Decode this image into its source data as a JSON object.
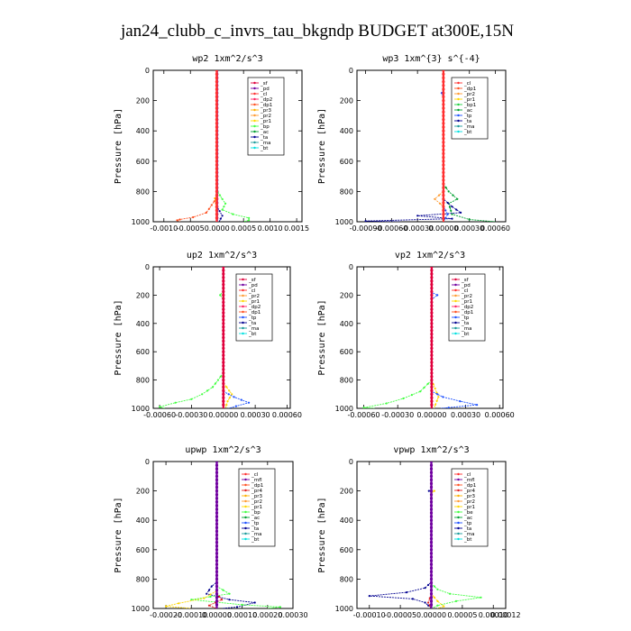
{
  "figure_title": "jan24_clubb_c_invrs_tau_bkgndp  BUDGET at300E,15N",
  "colors": {
    "sf": "#e0003c",
    "pd": "#7000a0",
    "cl": "#ff3030",
    "dp2": "#ff2060",
    "dp1": "#ff5020",
    "pr3": "#ffb000",
    "pr2": "#ff9a30",
    "pr1": "#ffd700",
    "bp": "#40ff40",
    "bp1": "#20d040",
    "ac": "#00a030",
    "tp": "#1c50ff",
    "ta": "#000090",
    "ma": "#1a9a9a",
    "bt": "#00e0e0",
    "mfl": "#7000a0",
    "pr4": "#e02020",
    "be": "#40ff40"
  },
  "chart_data": [
    {
      "type": "line",
      "title": "wp2   1xm^2/s^3",
      "ylabel": "Pressure [hPa]",
      "ylim": [
        1000,
        0
      ],
      "xlim": [
        -0.0012,
        0.0016
      ],
      "xticks": [
        "-0.0010",
        "-0.0005",
        "0.0000",
        "0.0005",
        "0.0010",
        "0.0015"
      ],
      "xtick_values": [
        -0.001,
        -0.0005,
        0,
        0.0005,
        0.001,
        0.0015
      ],
      "yticks": [
        "0",
        "200",
        "400",
        "600",
        "800",
        "1000"
      ],
      "legend": [
        "_sf",
        "_pd",
        "_cl",
        "_dp2",
        "_dp1",
        "_pr3",
        "_pr2",
        "_pr1",
        "_bp",
        "_ac",
        "_ta",
        "_ma",
        "_bt"
      ],
      "series": [
        {
          "name": "_bp",
          "key": "bp",
          "points": [
            [
              0,
              0
            ],
            [
              0,
              700
            ],
            [
              1e-05,
              800
            ],
            [
              0.0001,
              850
            ],
            [
              0.00016,
              880
            ],
            [
              0.0001,
              920
            ],
            [
              0.0003,
              950
            ],
            [
              0.0006,
              975
            ],
            [
              0.0006,
              990
            ],
            [
              0.0005,
              1000
            ]
          ]
        },
        {
          "name": "_dp1",
          "key": "dp1",
          "points": [
            [
              0,
              0
            ],
            [
              0,
              840
            ],
            [
              -0.0002,
              940
            ],
            [
              -0.00045,
              970
            ],
            [
              -0.0007,
              985
            ],
            [
              -0.00075,
              990
            ],
            [
              -0.0007,
              1000
            ]
          ]
        },
        {
          "name": "_pr3",
          "key": "pr3",
          "points": [
            [
              0,
              0
            ],
            [
              0,
              820
            ],
            [
              -4e-05,
              845
            ],
            [
              -2e-05,
              880
            ],
            [
              0,
              1000
            ]
          ]
        },
        {
          "name": "_ta",
          "key": "ta",
          "points": [
            [
              0,
              0
            ],
            [
              0,
              900
            ],
            [
              0.0001,
              960
            ],
            [
              4e-05,
              1000
            ]
          ]
        },
        {
          "name": "_pd",
          "key": "pd",
          "points": [
            [
              0,
              0
            ],
            [
              0,
              1000
            ]
          ]
        },
        {
          "name": "_cl",
          "key": "cl",
          "points": [
            [
              -5e-06,
              0
            ],
            [
              -5e-06,
              1000
            ]
          ]
        }
      ]
    },
    {
      "type": "line",
      "title": "wp3   1xm^{3} s^{-4}",
      "ylabel": "Pressure [hPa]",
      "ylim": [
        1000,
        0
      ],
      "xlim": [
        -0.001,
        0.00072
      ],
      "xticks": [
        "-0.00090",
        "-0.00060",
        "-0.00030",
        "0.00000",
        "0.00030",
        "0.00060"
      ],
      "xtick_values": [
        -0.0009,
        -0.0006,
        -0.0003,
        0,
        0.0003,
        0.0006
      ],
      "yticks": [
        "0",
        "200",
        "400",
        "600",
        "800",
        "1000"
      ],
      "legend": [
        "_cl",
        "_dp1",
        "_pr2",
        "_pr1",
        "_bp1",
        "_ac",
        "_tp",
        "_ta",
        "_ma",
        "_bt"
      ],
      "series": [
        {
          "name": "_ac",
          "key": "ac",
          "points": [
            [
              0,
              0
            ],
            [
              0,
              750
            ],
            [
              6e-05,
              800
            ],
            [
              0.00016,
              850
            ],
            [
              6e-05,
              880
            ],
            [
              0.0001,
              950
            ],
            [
              0.0003,
              985
            ],
            [
              0.0006,
              1000
            ]
          ]
        },
        {
          "name": "_pr2",
          "key": "pr2",
          "points": [
            [
              0,
              0
            ],
            [
              0,
              800
            ],
            [
              -0.0001,
              850
            ],
            [
              -4e-05,
              880
            ],
            [
              0,
              900
            ]
          ]
        },
        {
          "name": "_ta",
          "key": "ta",
          "points": [
            [
              0,
              0
            ],
            [
              0,
              850
            ],
            [
              0.0001,
              900
            ],
            [
              0.0002,
              940
            ],
            [
              -0.0003,
              960
            ],
            [
              0.0001,
              980
            ],
            [
              -0.0009,
              995
            ],
            [
              -0.0005,
              1000
            ]
          ]
        },
        {
          "name": "_tp",
          "key": "tp",
          "points": [
            [
              0,
              0
            ],
            [
              0,
              120
            ],
            [
              -2e-05,
              150
            ],
            [
              0,
              180
            ],
            [
              0,
              900
            ],
            [
              5e-05,
              950
            ],
            [
              0,
              1000
            ]
          ]
        },
        {
          "name": "_cl",
          "key": "cl",
          "points": [
            [
              0,
              0
            ],
            [
              0,
              1000
            ]
          ]
        }
      ]
    },
    {
      "type": "line",
      "title": "up2   1xm^2/s^3",
      "ylabel": "Pressure [hPa]",
      "ylim": [
        1000,
        0
      ],
      "xlim": [
        -0.00066,
        0.00063
      ],
      "xticks": [
        "-0.00060",
        "-0.00030",
        "0.00000",
        "0.00030",
        "0.00060"
      ],
      "xtick_values": [
        -0.0006,
        -0.0003,
        0,
        0.0003,
        0.0006
      ],
      "yticks": [
        "0",
        "200",
        "400",
        "600",
        "800",
        "1000"
      ],
      "legend": [
        "_sf",
        "_pd",
        "_cl",
        "_pr2",
        "_pr1",
        "_dp2",
        "_dp1",
        "_tp",
        "_ta",
        "_ma",
        "_bt"
      ],
      "series": [
        {
          "name": "_dp1",
          "key": "bp",
          "points": [
            [
              0,
              0
            ],
            [
              0,
              170
            ],
            [
              -3e-05,
              200
            ],
            [
              0,
              230
            ],
            [
              0,
              750
            ],
            [
              -0.0001,
              850
            ],
            [
              -0.0002,
              900
            ],
            [
              -0.0003,
              935
            ],
            [
              -0.00045,
              960
            ],
            [
              -0.0006,
              990
            ],
            [
              -0.00055,
              1000
            ]
          ]
        },
        {
          "name": "_pr1",
          "key": "pr1",
          "points": [
            [
              0,
              0
            ],
            [
              0,
              820
            ],
            [
              3e-05,
              850
            ],
            [
              8e-05,
              900
            ],
            [
              4e-05,
              950
            ],
            [
              2e-05,
              1000
            ]
          ]
        },
        {
          "name": "_tp",
          "key": "tp",
          "points": [
            [
              0,
              0
            ],
            [
              0,
              880
            ],
            [
              0.0001,
              920
            ],
            [
              0.00024,
              960
            ],
            [
              0.00012,
              985
            ],
            [
              5e-05,
              1000
            ]
          ]
        },
        {
          "name": "_sf",
          "key": "sf",
          "points": [
            [
              0,
              0
            ],
            [
              0,
              1000
            ]
          ]
        }
      ]
    },
    {
      "type": "line",
      "title": "vp2   1xm^2/s^3",
      "ylabel": "Pressure [hPa]",
      "ylim": [
        1000,
        0
      ],
      "xlim": [
        -0.00066,
        0.00063
      ],
      "xticks": [
        "-0.00060",
        "-0.00030",
        "0.00000",
        "0.00030",
        "0.00060"
      ],
      "xtick_values": [
        -0.0006,
        -0.0003,
        0,
        0.0003,
        0.0006
      ],
      "yticks": [
        "0",
        "200",
        "400",
        "600",
        "800",
        "1000"
      ],
      "legend": [
        "_sf",
        "_pd",
        "_cl",
        "_pr2",
        "_pr1",
        "_dp2",
        "_dp1",
        "_tp",
        "_ta",
        "_ma",
        "_bt"
      ],
      "series": [
        {
          "name": "_dp1",
          "key": "bp",
          "points": [
            [
              0,
              0
            ],
            [
              0,
              800
            ],
            [
              -0.0001,
              880
            ],
            [
              -0.00025,
              930
            ],
            [
              -0.0004,
              965
            ],
            [
              -0.0006,
              995
            ],
            [
              -0.0005,
              1000
            ]
          ]
        },
        {
          "name": "_pr1",
          "key": "pr1",
          "points": [
            [
              0,
              0
            ],
            [
              0,
              800
            ],
            [
              3e-05,
              860
            ],
            [
              6e-05,
              920
            ],
            [
              2e-05,
              1000
            ]
          ]
        },
        {
          "name": "_tp",
          "key": "tp",
          "points": [
            [
              0,
              0
            ],
            [
              0,
              180
            ],
            [
              5e-05,
              200
            ],
            [
              0,
              230
            ],
            [
              0,
              880
            ],
            [
              0.0001,
              920
            ],
            [
              0.00025,
              950
            ],
            [
              0.0004,
              975
            ],
            [
              0.00015,
              995
            ],
            [
              8e-05,
              1000
            ]
          ]
        },
        {
          "name": "_sf",
          "key": "sf",
          "points": [
            [
              0,
              0
            ],
            [
              0,
              1000
            ]
          ]
        }
      ]
    },
    {
      "type": "line",
      "title": "upwp   1xm^2/s^3",
      "ylabel": "Pressure [hPa]",
      "ylim": [
        1000,
        0
      ],
      "xlim": [
        -0.00025,
        0.0003
      ],
      "xticks": [
        "-0.00020",
        "-0.00010",
        "0.00000",
        "0.00010",
        "0.00020",
        "0.00030"
      ],
      "xtick_values": [
        -0.0002,
        -0.0001,
        0,
        0.0001,
        0.0002,
        0.0003
      ],
      "yticks": [
        "0",
        "200",
        "400",
        "600",
        "800",
        "1000"
      ],
      "legend": [
        "_cl",
        "_mfl",
        "_dp1",
        "_pr4",
        "_pr3",
        "_pr2",
        "_pr1",
        "_bp",
        "_ac",
        "_tp",
        "_ta",
        "_ma",
        "_bt"
      ],
      "series": [
        {
          "name": "_ta",
          "key": "ta",
          "points": [
            [
              0,
              0
            ],
            [
              0,
              820
            ],
            [
              -2e-05,
              850
            ],
            [
              -4e-05,
              900
            ],
            [
              5e-05,
              940
            ],
            [
              0.00015,
              960
            ],
            [
              8e-05,
              990
            ],
            [
              2e-05,
              1000
            ]
          ]
        },
        {
          "name": "_ac",
          "key": "bp",
          "points": [
            [
              0,
              0
            ],
            [
              0,
              850
            ],
            [
              5e-05,
              900
            ],
            [
              -0.0001,
              940
            ],
            [
              0.0001,
              975
            ],
            [
              0.00025,
              990
            ],
            [
              0.0002,
              1000
            ]
          ]
        },
        {
          "name": "_pr1",
          "key": "pr1",
          "points": [
            [
              0,
              0
            ],
            [
              0,
              880
            ],
            [
              -5e-05,
              930
            ],
            [
              -0.00015,
              965
            ],
            [
              -0.0002,
              985
            ],
            [
              -0.0001,
              1000
            ]
          ]
        },
        {
          "name": "_pr4",
          "key": "pr4",
          "points": [
            [
              0,
              0
            ],
            [
              0,
              900
            ],
            [
              2e-05,
              940
            ],
            [
              -3e-05,
              980
            ],
            [
              0,
              1000
            ]
          ]
        },
        {
          "name": "_mfl",
          "key": "mfl",
          "points": [
            [
              0,
              0
            ],
            [
              0,
              1000
            ]
          ]
        }
      ]
    },
    {
      "type": "line",
      "title": "vpwp   1xm^2/s^3",
      "ylabel": "Pressure [hPa]",
      "ylim": [
        1000,
        0
      ],
      "xlim": [
        -0.00012,
        0.00012
      ],
      "xticks": [
        "-0.00010",
        "-0.00005",
        "0.00000",
        "0.00005",
        "0.00010",
        "0.00012"
      ],
      "xtick_values": [
        -0.0001,
        -5e-05,
        0,
        5e-05,
        0.0001,
        0.00012
      ],
      "yticks": [
        "0",
        "200",
        "400",
        "600",
        "800",
        "1000"
      ],
      "legend": [
        "_cl",
        "_mfl",
        "_dp1",
        "_pr4",
        "_pr3",
        "_pr2",
        "_pr1",
        "_be",
        "_ac",
        "_tp",
        "_ta",
        "_ma",
        "_bt"
      ],
      "series": [
        {
          "name": "_ta",
          "key": "ta",
          "points": [
            [
              0,
              0
            ],
            [
              0,
              190
            ],
            [
              -4e-06,
              200
            ],
            [
              0,
              210
            ],
            [
              0,
              820
            ],
            [
              -1e-05,
              860
            ],
            [
              -4e-05,
              890
            ],
            [
              -0.0001,
              915
            ],
            [
              -3e-05,
              935
            ],
            [
              -1e-05,
              960
            ],
            [
              0,
              1000
            ]
          ]
        },
        {
          "name": "_be",
          "key": "bp",
          "points": [
            [
              0,
              0
            ],
            [
              0,
              830
            ],
            [
              1e-05,
              870
            ],
            [
              3e-05,
              900
            ],
            [
              8e-05,
              925
            ],
            [
              4e-05,
              950
            ],
            [
              1e-05,
              980
            ],
            [
              0,
              1000
            ]
          ]
        },
        {
          "name": "_pr1",
          "key": "pr1",
          "points": [
            [
              0,
              0
            ],
            [
              0,
              190
            ],
            [
              5e-06,
              200
            ],
            [
              0,
              215
            ],
            [
              0,
              900
            ],
            [
              1e-05,
              950
            ],
            [
              2e-05,
              985
            ],
            [
              1e-05,
              1000
            ]
          ]
        },
        {
          "name": "_pr4",
          "key": "pr4",
          "points": [
            [
              0,
              0
            ],
            [
              0,
              900
            ],
            [
              -5e-06,
              960
            ],
            [
              0,
              1000
            ]
          ]
        },
        {
          "name": "_mfl",
          "key": "mfl",
          "points": [
            [
              0,
              0
            ],
            [
              0,
              1000
            ]
          ]
        }
      ]
    }
  ]
}
